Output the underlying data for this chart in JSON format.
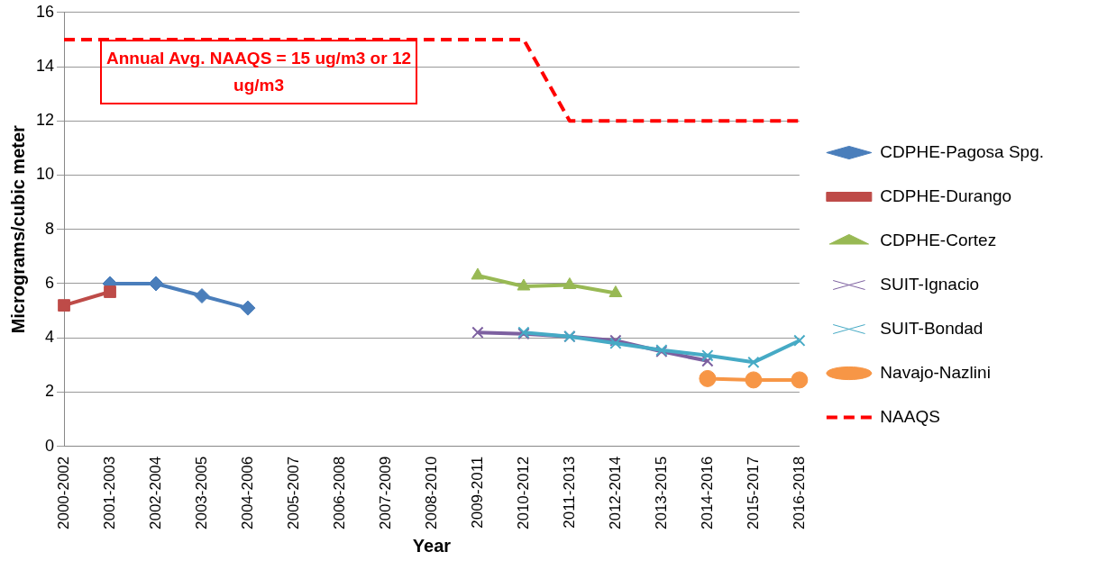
{
  "chart_data": {
    "type": "line",
    "xlabel": "Year",
    "ylabel": "Micrograms/cubic meter",
    "categories": [
      "2000-2002",
      "2001-2003",
      "2002-2004",
      "2003-2005",
      "2004-2006",
      "2005-2007",
      "2006-2008",
      "2007-2009",
      "2008-2010",
      "2009-2011",
      "2010-2012",
      "2011-2013",
      "2012-2014",
      "2013-2015",
      "2014-2016",
      "2015-2017",
      "2016-2018"
    ],
    "series": [
      {
        "name": "CDPHE-Pagosa Spg.",
        "color": "#4a7ebb",
        "marker": "diamond",
        "values": [
          null,
          6.0,
          6.0,
          5.55,
          5.1,
          null,
          null,
          null,
          null,
          null,
          null,
          null,
          null,
          null,
          null,
          null,
          null
        ]
      },
      {
        "name": "CDPHE-Durango",
        "color": "#be4b48",
        "marker": "square",
        "values": [
          5.2,
          5.7,
          null,
          null,
          null,
          null,
          null,
          null,
          null,
          null,
          null,
          null,
          null,
          null,
          null,
          null,
          null
        ]
      },
      {
        "name": "CDPHE-Cortez",
        "color": "#98b954",
        "marker": "triangle",
        "values": [
          null,
          null,
          null,
          null,
          null,
          null,
          null,
          null,
          null,
          6.3,
          5.9,
          5.95,
          5.65,
          null,
          null,
          null,
          null
        ]
      },
      {
        "name": "SUIT-Ignacio",
        "color": "#7d60a0",
        "marker": "cross",
        "values": [
          null,
          null,
          null,
          null,
          null,
          null,
          null,
          null,
          null,
          4.2,
          4.15,
          4.05,
          3.9,
          3.5,
          3.15,
          null,
          null
        ]
      },
      {
        "name": "SUIT-Bondad",
        "color": "#46aac5",
        "marker": "cross",
        "values": [
          null,
          null,
          null,
          null,
          null,
          null,
          null,
          null,
          null,
          null,
          4.2,
          4.05,
          3.8,
          3.55,
          3.35,
          3.1,
          3.9
        ]
      },
      {
        "name": "Navajo-Nazlini",
        "color": "#f79646",
        "marker": "circle",
        "values": [
          null,
          null,
          null,
          null,
          null,
          null,
          null,
          null,
          null,
          null,
          null,
          null,
          null,
          null,
          2.5,
          2.45,
          2.45
        ]
      },
      {
        "name": "NAAQS",
        "color": "#ff0000",
        "marker": "none",
        "line_style": "dashed",
        "values": [
          15,
          15,
          15,
          15,
          15,
          15,
          15,
          15,
          15,
          15,
          15,
          12,
          12,
          12,
          12,
          12,
          12
        ]
      }
    ],
    "annotations": [
      {
        "text": "Annual Avg. NAAQS = 15 ug/m3 or 12 ug/m3",
        "x": "2000-2002",
        "y": 15
      }
    ],
    "ylim": [
      0,
      16
    ],
    "yticks": [
      0,
      2,
      4,
      6,
      8,
      10,
      12,
      14,
      16
    ],
    "grid": "y",
    "legend": "right"
  }
}
